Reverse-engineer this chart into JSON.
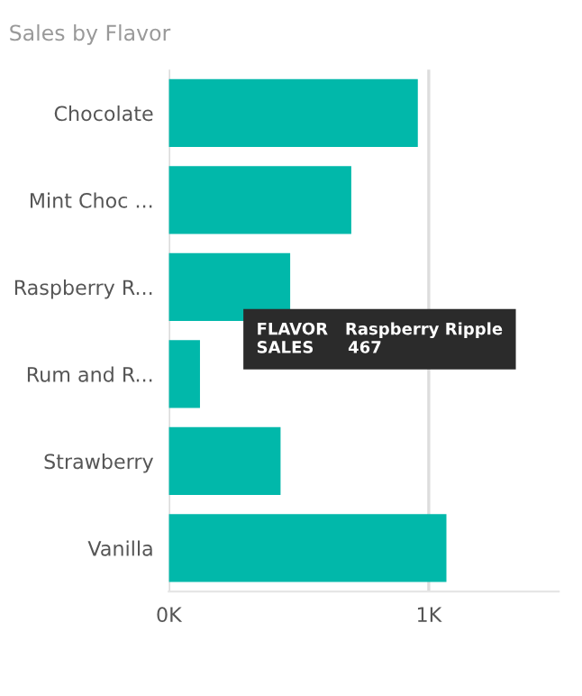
{
  "chart_data": {
    "type": "bar",
    "orientation": "horizontal",
    "title": "Sales by Flavor",
    "categories": [
      "Chocolate",
      "Mint Choc ...",
      "Raspberry R...",
      "Rum and R...",
      "Strawberry",
      "Vanilla"
    ],
    "values": [
      958,
      702,
      467,
      120,
      430,
      1068
    ],
    "color": "#01b8aa",
    "xlim": [
      0,
      1500
    ],
    "xticks": [
      {
        "value": 0,
        "label": "0K"
      },
      {
        "value": 1000,
        "label": "1K"
      }
    ],
    "grid": "x",
    "annotations": [
      {
        "text": "FLAVOR   Raspberry Ripple\nSALES      467",
        "x": 467,
        "y": "Raspberry R..."
      }
    ]
  }
}
